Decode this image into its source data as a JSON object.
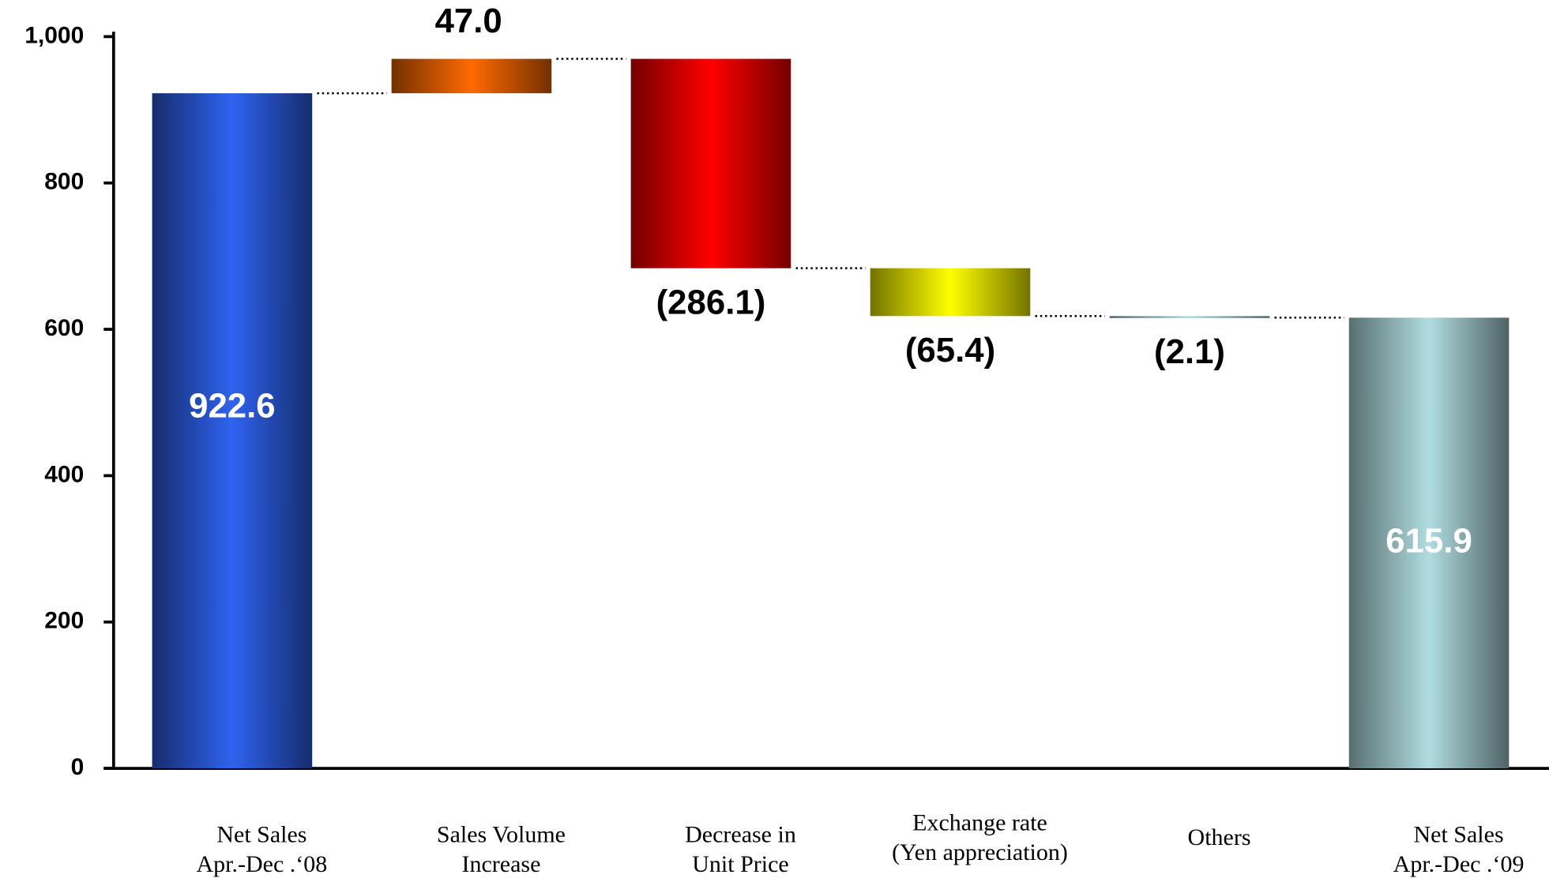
{
  "chart_data": {
    "type": "waterfall",
    "categories": [
      [
        "Net Sales",
        "Apr.-Dec .‘08"
      ],
      [
        "Sales Volume",
        "Increase"
      ],
      [
        "Decrease in",
        "Unit Price"
      ],
      [
        "Exchange rate",
        "(Yen appreciation)"
      ],
      [
        "Others"
      ],
      [
        "Net Sales",
        "Apr.-Dec .‘09"
      ]
    ],
    "values": [
      922.6,
      47.0,
      -286.1,
      -65.4,
      -2.1,
      615.9
    ],
    "value_labels": [
      "922.6",
      "47.0",
      "(286.1)",
      "(65.4)",
      "(2.1)",
      "615.9"
    ],
    "colors": [
      "#2f63f0",
      "#ff6a00",
      "#ff0000",
      "#ffff00",
      "#b0dde0",
      "#b0dde0"
    ],
    "ylim": [
      0,
      1000
    ],
    "yticks": [
      0,
      200,
      400,
      600,
      800,
      {
        "value": 1000,
        "label": "1,000"
      }
    ]
  }
}
